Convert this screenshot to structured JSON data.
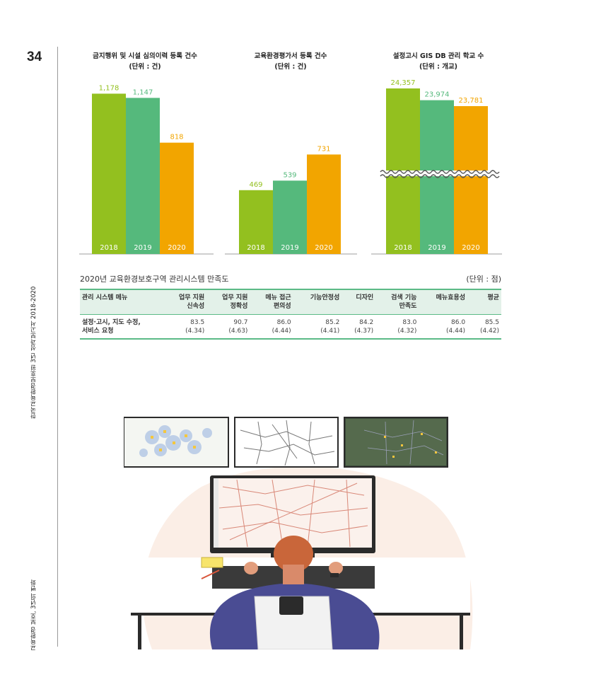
{
  "page": {
    "number": "34",
    "side_text_top": "한국교육환경보호원 3년 성과보고서 2018-2020",
    "side_text_bottom": "교육환경 보호, 3년의 변화"
  },
  "chart_data": [
    {
      "type": "bar",
      "title": "금지행위 및 시설 심의이력 등록 건수",
      "subtitle": "(단위 : 건)",
      "categories": [
        "2018",
        "2019",
        "2020"
      ],
      "values": [
        1178,
        1147,
        818
      ],
      "value_labels": [
        "1,178",
        "1,147",
        "818"
      ],
      "ylim": [
        0,
        1250
      ],
      "colors": [
        "#93c01f",
        "#55b97c",
        "#f2a500"
      ],
      "axis_break": false
    },
    {
      "type": "bar",
      "title": "교육환경평가서 등록 건수",
      "subtitle": "(단위 : 건)",
      "categories": [
        "2018",
        "2019",
        "2020"
      ],
      "values": [
        469,
        539,
        731
      ],
      "value_labels": [
        "469",
        "539",
        "731"
      ],
      "ylim": [
        0,
        1250
      ],
      "colors": [
        "#93c01f",
        "#55b97c",
        "#f2a500"
      ],
      "axis_break": false
    },
    {
      "type": "bar",
      "title": "설정고시 GIS DB 관리 학교 수",
      "subtitle": "(단위 : 개교)",
      "categories": [
        "2018",
        "2019",
        "2020"
      ],
      "values": [
        24357,
        23974,
        23781
      ],
      "value_labels": [
        "24,357",
        "23,974",
        "23,781"
      ],
      "colors": [
        "#93c01f",
        "#55b97c",
        "#f2a500"
      ],
      "axis_break": true
    }
  ],
  "table": {
    "title": "2020년 교육환경보호구역 관리시스템 만족도",
    "unit": "(단위 : 점)",
    "headers": [
      [
        "관리 시스템 메뉴"
      ],
      [
        "업무 지원",
        "신속성"
      ],
      [
        "업무 지원",
        "정확성"
      ],
      [
        "메뉴 접근",
        "편의성"
      ],
      [
        "기능안정성"
      ],
      [
        "디자인"
      ],
      [
        "검색 기능",
        "만족도"
      ],
      [
        "메뉴효용성"
      ],
      [
        "평균"
      ]
    ],
    "row": {
      "label": [
        "설정·고시, 지도 수정,",
        "서비스 요청"
      ],
      "values": [
        [
          "83.5",
          "(4.34)"
        ],
        [
          "90.7",
          "(4.63)"
        ],
        [
          "86.0",
          "(4.44)"
        ],
        [
          "85.2",
          "(4.41)"
        ],
        [
          "84.2",
          "(4.37)"
        ],
        [
          "83.0",
          "(4.32)"
        ],
        [
          "86.0",
          "(4.44)"
        ],
        [
          "85.5",
          "(4.42)"
        ]
      ]
    }
  },
  "colors": {
    "green_light": "#93c01f",
    "green": "#55b97c",
    "orange": "#f2a500",
    "table_accent": "#5bba86"
  }
}
